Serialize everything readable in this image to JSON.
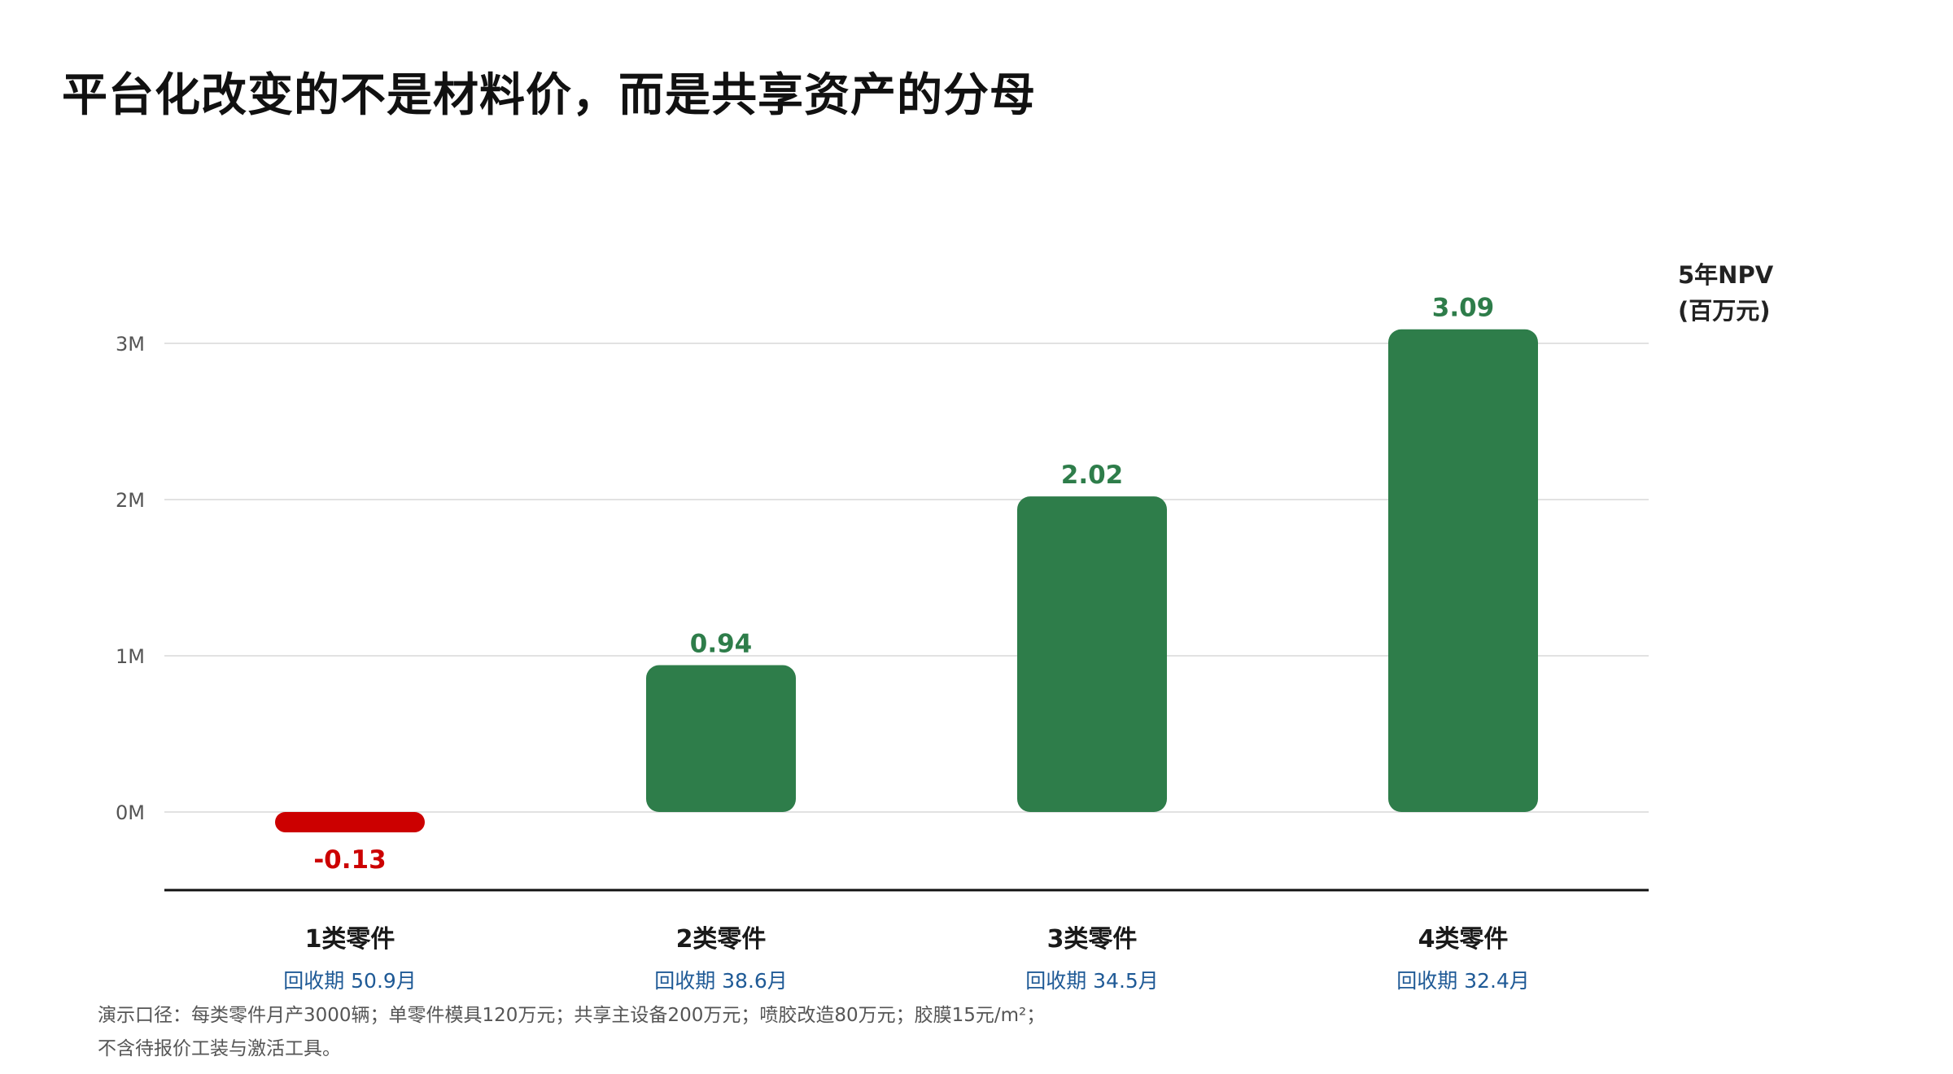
{
  "title": "平台化改变的不是材料价，而是共享资产的分母",
  "unit_label": {
    "line1": "5年NPV",
    "line2": "(百万元)"
  },
  "chart_data": {
    "type": "bar",
    "categories": [
      "1类零件",
      "2类零件",
      "3类零件",
      "4类零件"
    ],
    "values": [
      -0.13,
      0.94,
      2.02,
      3.09
    ],
    "value_labels": [
      "-0.13",
      "0.94",
      "2.02",
      "3.09"
    ],
    "sub_labels": [
      "回收期 50.9月",
      "回收期 38.6月",
      "回收期 34.5月",
      "回收期 32.4月"
    ],
    "yticks": [
      0,
      1,
      2,
      3
    ],
    "ytick_labels": [
      "0M",
      "1M",
      "2M",
      "3M"
    ],
    "ylim": [
      -0.5,
      3.0
    ],
    "grid": true,
    "colors": {
      "positive": "#2e7d4a",
      "negative": "#cc0000",
      "grid": "#d9d9d9",
      "axis": "#111111",
      "sub_label": "#1f5a96",
      "tick": "#555555"
    }
  },
  "notes": {
    "line1": "演示口径：每类零件月产3000辆；单零件模具120万元；共享主设备200万元；喷胶改造80万元；胶膜15元/m²；",
    "line2": "不含待报价工装与激活工具。"
  }
}
